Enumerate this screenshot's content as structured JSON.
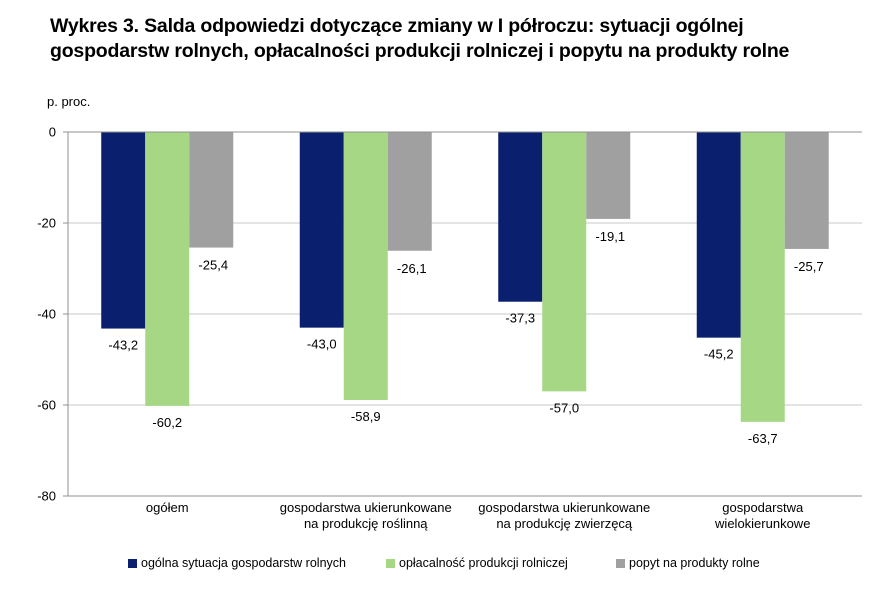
{
  "chart_data": {
    "type": "bar",
    "title": "Wykres 3. Salda odpowiedzi dotyczące zmiany w I półroczu: sytuacji ogólnej gospodarstw rolnych, opłacalności produkcji rolniczej i popytu na produkty rolne",
    "ylabel": "p. proc.",
    "xlabel": "",
    "ylim": [
      -80,
      0
    ],
    "yticks": [
      0,
      -20,
      -40,
      -60,
      -80
    ],
    "grid": true,
    "legend_position": "bottom",
    "categories": [
      [
        "ogółem"
      ],
      [
        "gospodarstwa ukierunkowane",
        "na produkcję roślinną"
      ],
      [
        "gospodarstwa ukierunkowane",
        "na produkcję zwierzęcą"
      ],
      [
        "gospodarstwa",
        "wielokierunkowe"
      ]
    ],
    "series": [
      {
        "name": "ogólna sytuacja gospodarstw rolnych",
        "color": "#0a1f6e",
        "values": [
          -43.2,
          -43.0,
          -37.3,
          -45.2
        ],
        "labels": [
          "-43,2",
          "-43,0",
          "-37,3",
          "-45,2"
        ]
      },
      {
        "name": "opłacalność produkcji rolniczej",
        "color": "#a6d785",
        "values": [
          -60.2,
          -58.9,
          -57.0,
          -63.7
        ],
        "labels": [
          "-60,2",
          "-58,9",
          "-57,0",
          "-63,7"
        ]
      },
      {
        "name": "popyt na produkty rolne",
        "color": "#a0a0a0",
        "values": [
          -25.4,
          -26.1,
          -19.1,
          -25.7
        ],
        "labels": [
          "-25,4",
          "-26,1",
          "-19,1",
          "-25,7"
        ]
      }
    ]
  }
}
